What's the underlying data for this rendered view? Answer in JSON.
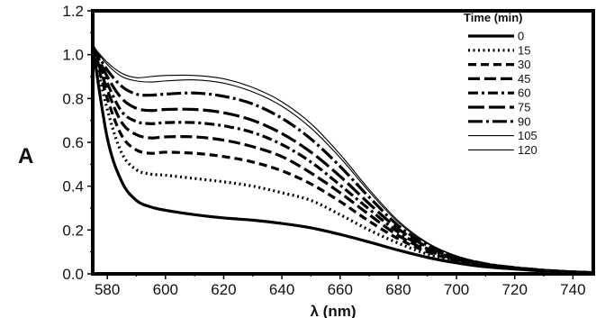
{
  "chart_data": {
    "type": "line",
    "title": "",
    "xlabel": "λ (nm)",
    "ylabel": "A",
    "xlim": [
      575,
      747
    ],
    "ylim": [
      0.0,
      1.2
    ],
    "xticks": [
      580,
      600,
      620,
      640,
      660,
      680,
      700,
      720,
      740
    ],
    "yticks": [
      0.0,
      0.2,
      0.4,
      0.6,
      0.8,
      1.0,
      1.2
    ],
    "grid": false,
    "legend_position": "top-right",
    "legend_title": "Time (min)",
    "series": [
      {
        "name": "0",
        "style": "solid-thick",
        "points": [
          [
            575,
            1.04
          ],
          [
            580,
            0.62
          ],
          [
            585,
            0.42
          ],
          [
            590,
            0.335
          ],
          [
            595,
            0.305
          ],
          [
            600,
            0.29
          ],
          [
            610,
            0.27
          ],
          [
            620,
            0.255
          ],
          [
            630,
            0.245
          ],
          [
            640,
            0.23
          ],
          [
            650,
            0.21
          ],
          [
            660,
            0.18
          ],
          [
            670,
            0.145
          ],
          [
            680,
            0.108
          ],
          [
            690,
            0.075
          ],
          [
            700,
            0.05
          ],
          [
            710,
            0.032
          ],
          [
            720,
            0.022
          ],
          [
            730,
            0.013
          ],
          [
            740,
            0.007
          ],
          [
            747,
            0.005
          ]
        ]
      },
      {
        "name": "15",
        "style": "dotted",
        "points": [
          [
            575,
            1.04
          ],
          [
            580,
            0.75
          ],
          [
            585,
            0.55
          ],
          [
            590,
            0.475
          ],
          [
            595,
            0.455
          ],
          [
            600,
            0.45
          ],
          [
            610,
            0.435
          ],
          [
            620,
            0.42
          ],
          [
            630,
            0.4
          ],
          [
            640,
            0.37
          ],
          [
            650,
            0.335
          ],
          [
            660,
            0.27
          ],
          [
            670,
            0.2
          ],
          [
            680,
            0.14
          ],
          [
            690,
            0.09
          ],
          [
            700,
            0.058
          ],
          [
            710,
            0.036
          ],
          [
            720,
            0.024
          ],
          [
            730,
            0.014
          ],
          [
            740,
            0.008
          ],
          [
            747,
            0.005
          ]
        ]
      },
      {
        "name": "30",
        "style": "dash-medium",
        "points": [
          [
            575,
            1.04
          ],
          [
            580,
            0.8
          ],
          [
            585,
            0.63
          ],
          [
            590,
            0.565
          ],
          [
            595,
            0.55
          ],
          [
            600,
            0.555
          ],
          [
            610,
            0.55
          ],
          [
            620,
            0.535
          ],
          [
            630,
            0.51
          ],
          [
            640,
            0.47
          ],
          [
            650,
            0.41
          ],
          [
            660,
            0.33
          ],
          [
            670,
            0.24
          ],
          [
            680,
            0.16
          ],
          [
            690,
            0.1
          ],
          [
            700,
            0.062
          ],
          [
            710,
            0.038
          ],
          [
            720,
            0.025
          ],
          [
            730,
            0.015
          ],
          [
            740,
            0.008
          ],
          [
            747,
            0.005
          ]
        ]
      },
      {
        "name": "45",
        "style": "dash-long",
        "points": [
          [
            575,
            1.04
          ],
          [
            580,
            0.84
          ],
          [
            585,
            0.69
          ],
          [
            590,
            0.635
          ],
          [
            595,
            0.62
          ],
          [
            600,
            0.625
          ],
          [
            610,
            0.625
          ],
          [
            620,
            0.61
          ],
          [
            630,
            0.58
          ],
          [
            640,
            0.535
          ],
          [
            650,
            0.46
          ],
          [
            660,
            0.37
          ],
          [
            670,
            0.27
          ],
          [
            680,
            0.175
          ],
          [
            690,
            0.108
          ],
          [
            700,
            0.066
          ],
          [
            710,
            0.04
          ],
          [
            720,
            0.026
          ],
          [
            730,
            0.015
          ],
          [
            740,
            0.008
          ],
          [
            747,
            0.005
          ]
        ]
      },
      {
        "name": "60",
        "style": "dash-dot",
        "points": [
          [
            575,
            1.04
          ],
          [
            580,
            0.87
          ],
          [
            585,
            0.74
          ],
          [
            590,
            0.695
          ],
          [
            595,
            0.685
          ],
          [
            600,
            0.69
          ],
          [
            610,
            0.69
          ],
          [
            620,
            0.675
          ],
          [
            630,
            0.645
          ],
          [
            640,
            0.59
          ],
          [
            650,
            0.51
          ],
          [
            660,
            0.405
          ],
          [
            670,
            0.295
          ],
          [
            680,
            0.19
          ],
          [
            690,
            0.115
          ],
          [
            700,
            0.07
          ],
          [
            710,
            0.042
          ],
          [
            720,
            0.027
          ],
          [
            730,
            0.016
          ],
          [
            740,
            0.009
          ],
          [
            747,
            0.006
          ]
        ]
      },
      {
        "name": "75",
        "style": "long-dash",
        "points": [
          [
            575,
            1.04
          ],
          [
            580,
            0.9
          ],
          [
            585,
            0.8
          ],
          [
            590,
            0.755
          ],
          [
            595,
            0.745
          ],
          [
            600,
            0.75
          ],
          [
            610,
            0.75
          ],
          [
            620,
            0.735
          ],
          [
            630,
            0.7
          ],
          [
            640,
            0.64
          ],
          [
            650,
            0.555
          ],
          [
            660,
            0.445
          ],
          [
            670,
            0.32
          ],
          [
            680,
            0.205
          ],
          [
            690,
            0.123
          ],
          [
            700,
            0.074
          ],
          [
            710,
            0.044
          ],
          [
            720,
            0.028
          ],
          [
            730,
            0.016
          ],
          [
            740,
            0.009
          ],
          [
            747,
            0.006
          ]
        ]
      },
      {
        "name": "90",
        "style": "long-dash-dot",
        "points": [
          [
            575,
            1.04
          ],
          [
            580,
            0.93
          ],
          [
            585,
            0.855
          ],
          [
            590,
            0.82
          ],
          [
            595,
            0.815
          ],
          [
            600,
            0.82
          ],
          [
            610,
            0.825
          ],
          [
            620,
            0.81
          ],
          [
            630,
            0.775
          ],
          [
            640,
            0.71
          ],
          [
            650,
            0.615
          ],
          [
            660,
            0.49
          ],
          [
            670,
            0.35
          ],
          [
            680,
            0.22
          ],
          [
            690,
            0.13
          ],
          [
            700,
            0.077
          ],
          [
            710,
            0.046
          ],
          [
            720,
            0.029
          ],
          [
            730,
            0.017
          ],
          [
            740,
            0.009
          ],
          [
            747,
            0.006
          ]
        ]
      },
      {
        "name": "105",
        "style": "thin",
        "points": [
          [
            575,
            1.04
          ],
          [
            580,
            0.955
          ],
          [
            585,
            0.9
          ],
          [
            590,
            0.88
          ],
          [
            595,
            0.875
          ],
          [
            600,
            0.88
          ],
          [
            610,
            0.885
          ],
          [
            620,
            0.87
          ],
          [
            630,
            0.83
          ],
          [
            640,
            0.765
          ],
          [
            650,
            0.665
          ],
          [
            660,
            0.53
          ],
          [
            670,
            0.375
          ],
          [
            680,
            0.235
          ],
          [
            690,
            0.138
          ],
          [
            700,
            0.08
          ],
          [
            710,
            0.048
          ],
          [
            720,
            0.03
          ],
          [
            730,
            0.017
          ],
          [
            740,
            0.01
          ],
          [
            747,
            0.006
          ]
        ]
      },
      {
        "name": "120",
        "style": "thin",
        "points": [
          [
            575,
            1.04
          ],
          [
            580,
            0.965
          ],
          [
            585,
            0.915
          ],
          [
            590,
            0.895
          ],
          [
            595,
            0.9
          ],
          [
            600,
            0.905
          ],
          [
            610,
            0.905
          ],
          [
            620,
            0.89
          ],
          [
            630,
            0.85
          ],
          [
            640,
            0.785
          ],
          [
            650,
            0.685
          ],
          [
            660,
            0.545
          ],
          [
            670,
            0.385
          ],
          [
            680,
            0.242
          ],
          [
            690,
            0.142
          ],
          [
            700,
            0.082
          ],
          [
            710,
            0.049
          ],
          [
            720,
            0.031
          ],
          [
            730,
            0.018
          ],
          [
            740,
            0.01
          ],
          [
            747,
            0.006
          ]
        ]
      }
    ]
  }
}
